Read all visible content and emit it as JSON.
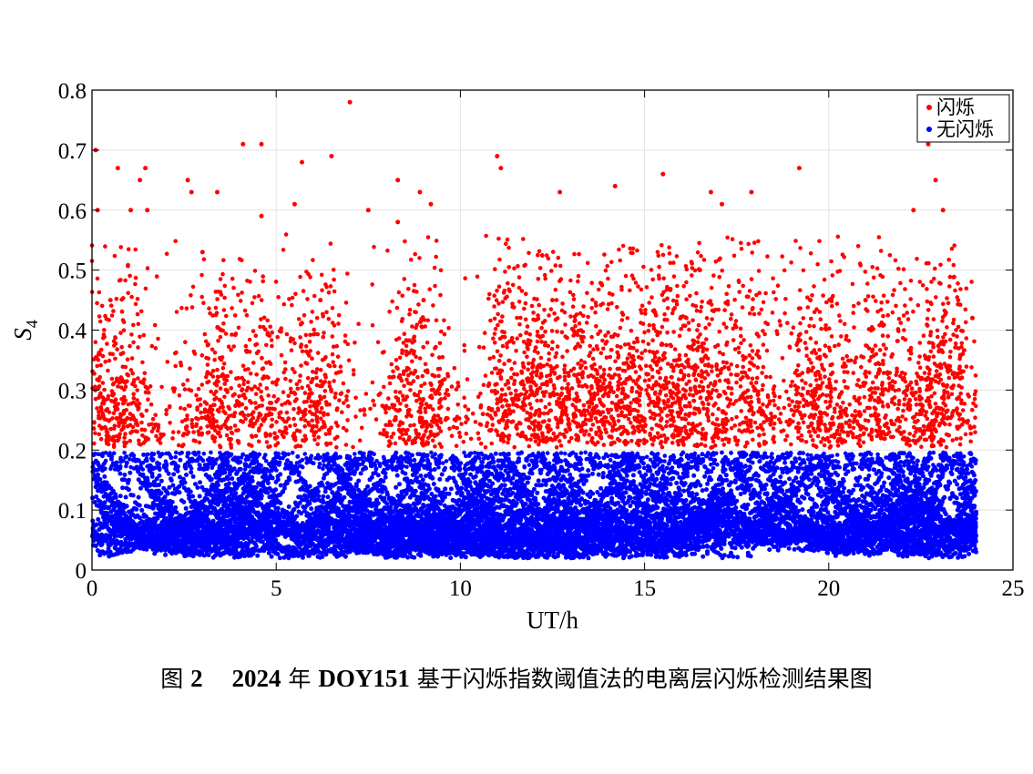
{
  "chart_data": {
    "type": "scatter",
    "xlabel": "UT/h",
    "ylabel_main": "S",
    "ylabel_sub": "4",
    "xlim": [
      0,
      25
    ],
    "ylim": [
      0,
      0.8
    ],
    "x_ticks": [
      "0",
      "5",
      "10",
      "15",
      "20",
      "25"
    ],
    "y_ticks": [
      "0",
      "0.1",
      "0.2",
      "0.3",
      "0.4",
      "0.5",
      "0.6",
      "0.7",
      "0.8"
    ],
    "grid": true,
    "legend_placement": "top-right",
    "threshold": 0.2,
    "data_x_range": [
      0,
      24
    ],
    "series": [
      {
        "name": "闪烁",
        "color": "#ff0000",
        "sample_points": [
          [
            0.1,
            0.7
          ],
          [
            0.15,
            0.6
          ],
          [
            0.7,
            0.67
          ],
          [
            1.05,
            0.6
          ],
          [
            1.3,
            0.65
          ],
          [
            1.45,
            0.67
          ],
          [
            1.5,
            0.6
          ],
          [
            2.6,
            0.65
          ],
          [
            2.7,
            0.63
          ],
          [
            3.0,
            0.53
          ],
          [
            3.4,
            0.63
          ],
          [
            4.1,
            0.71
          ],
          [
            4.6,
            0.71
          ],
          [
            4.6,
            0.59
          ],
          [
            5.7,
            0.68
          ],
          [
            5.5,
            0.61
          ],
          [
            6.5,
            0.69
          ],
          [
            7.5,
            0.6
          ],
          [
            8.3,
            0.65
          ],
          [
            8.3,
            0.58
          ],
          [
            8.9,
            0.63
          ],
          [
            9.2,
            0.61
          ],
          [
            7.0,
            0.78
          ],
          [
            11.0,
            0.69
          ],
          [
            11.1,
            0.67
          ],
          [
            12.7,
            0.63
          ],
          [
            14.2,
            0.64
          ],
          [
            15.5,
            0.66
          ],
          [
            16.8,
            0.63
          ],
          [
            17.1,
            0.61
          ],
          [
            17.9,
            0.63
          ],
          [
            19.2,
            0.67
          ],
          [
            22.3,
            0.6
          ],
          [
            22.7,
            0.71
          ],
          [
            22.9,
            0.65
          ],
          [
            23.1,
            0.6
          ],
          [
            23.9,
            0.42
          ],
          [
            0.5,
            0.45
          ],
          [
            3.5,
            0.4
          ],
          [
            6.2,
            0.45
          ],
          [
            9.0,
            0.45
          ],
          [
            12.5,
            0.45
          ],
          [
            16.5,
            0.5
          ],
          [
            19.5,
            0.45
          ],
          [
            21.0,
            0.45
          ]
        ]
      },
      {
        "name": "无闪烁",
        "color": "#0000ff",
        "sample_points": [
          [
            0.5,
            0.03
          ],
          [
            2.0,
            0.05
          ],
          [
            4.0,
            0.04
          ],
          [
            6.0,
            0.03
          ],
          [
            8.0,
            0.05
          ],
          [
            10.0,
            0.04
          ],
          [
            12.0,
            0.06
          ],
          [
            14.0,
            0.08
          ],
          [
            16.0,
            0.05
          ],
          [
            18.0,
            0.04
          ],
          [
            20.0,
            0.05
          ],
          [
            22.0,
            0.06
          ],
          [
            24.0,
            0.03
          ],
          [
            1.0,
            0.15
          ],
          [
            5.0,
            0.18
          ],
          [
            9.0,
            0.12
          ],
          [
            13.0,
            0.15
          ],
          [
            17.0,
            0.12
          ],
          [
            21.0,
            0.18
          ],
          [
            23.5,
            0.1
          ]
        ]
      }
    ]
  },
  "caption": {
    "fig_prefix": "图 ",
    "fig_number": "2",
    "gap": "    ",
    "year": "2024",
    "year_unit": " 年 ",
    "doy": "DOY151",
    "text": " 基于闪烁指数阈值法的电离层闪烁检测结果图"
  }
}
